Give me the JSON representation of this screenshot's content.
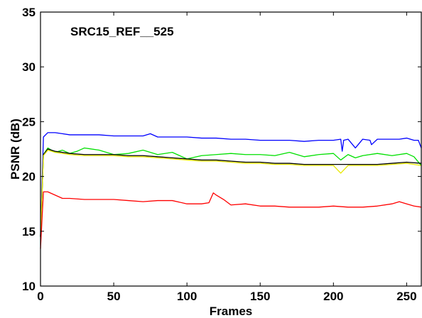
{
  "chart_data": {
    "type": "line",
    "title": "SRC15_REF__525",
    "xlabel": "Frames",
    "ylabel": "PSNR (dB)",
    "xlim": [
      0,
      260
    ],
    "ylim": [
      10,
      35
    ],
    "xticks": [
      0,
      50,
      100,
      150,
      200,
      250
    ],
    "yticks": [
      10,
      15,
      20,
      25,
      30,
      35
    ],
    "grid": false,
    "legend": "none",
    "series": [
      {
        "color": "#0000ff",
        "x": [
          0,
          2,
          5,
          10,
          15,
          20,
          30,
          40,
          50,
          60,
          70,
          75,
          80,
          90,
          100,
          110,
          120,
          130,
          140,
          150,
          160,
          170,
          180,
          190,
          200,
          205,
          206,
          207,
          210,
          215,
          220,
          225,
          226,
          230,
          240,
          245,
          250,
          255,
          258,
          260
        ],
        "y": [
          14.5,
          23.6,
          24.0,
          24.0,
          23.9,
          23.8,
          23.8,
          23.8,
          23.7,
          23.7,
          23.7,
          23.9,
          23.6,
          23.6,
          23.6,
          23.5,
          23.5,
          23.4,
          23.4,
          23.3,
          23.3,
          23.3,
          23.2,
          23.3,
          23.3,
          23.4,
          22.3,
          23.3,
          23.4,
          22.6,
          23.4,
          23.3,
          22.9,
          23.4,
          23.4,
          23.4,
          23.5,
          23.3,
          23.3,
          22.6
        ]
      },
      {
        "color": "#00e000",
        "x": [
          0,
          2,
          5,
          10,
          15,
          20,
          25,
          30,
          40,
          50,
          60,
          70,
          80,
          90,
          100,
          110,
          120,
          130,
          140,
          150,
          160,
          170,
          180,
          190,
          200,
          205,
          210,
          215,
          220,
          230,
          240,
          250,
          255,
          260
        ],
        "y": [
          14.5,
          22.0,
          22.6,
          22.2,
          22.4,
          22.1,
          22.3,
          22.6,
          22.4,
          22.0,
          22.1,
          22.4,
          22.0,
          22.2,
          21.6,
          21.9,
          22.0,
          22.1,
          22.0,
          22.0,
          21.9,
          22.2,
          21.8,
          22.0,
          22.1,
          21.5,
          22.0,
          21.7,
          21.9,
          22.1,
          21.9,
          22.1,
          21.8,
          21.0
        ]
      },
      {
        "color": "#000000",
        "x": [
          0,
          2,
          5,
          10,
          20,
          30,
          40,
          50,
          60,
          70,
          80,
          90,
          100,
          110,
          120,
          130,
          140,
          150,
          160,
          170,
          180,
          190,
          200,
          210,
          220,
          230,
          240,
          250,
          260
        ],
        "y": [
          14.5,
          22.0,
          22.5,
          22.3,
          22.1,
          22.0,
          22.0,
          22.0,
          21.9,
          21.9,
          21.8,
          21.7,
          21.6,
          21.5,
          21.5,
          21.4,
          21.3,
          21.3,
          21.2,
          21.2,
          21.1,
          21.1,
          21.1,
          21.1,
          21.1,
          21.1,
          21.2,
          21.3,
          21.2
        ]
      },
      {
        "color": "#e8e800",
        "x": [
          0,
          2,
          5,
          10,
          20,
          30,
          40,
          50,
          60,
          70,
          80,
          90,
          100,
          110,
          120,
          130,
          140,
          150,
          160,
          170,
          180,
          190,
          200,
          205,
          210,
          220,
          230,
          240,
          250,
          260
        ],
        "y": [
          14.5,
          21.9,
          22.4,
          22.2,
          22.0,
          21.9,
          21.9,
          21.9,
          21.8,
          21.8,
          21.7,
          21.6,
          21.5,
          21.4,
          21.4,
          21.3,
          21.2,
          21.2,
          21.1,
          21.1,
          21.0,
          21.0,
          21.0,
          20.3,
          21.0,
          21.0,
          21.0,
          21.1,
          21.2,
          21.0
        ]
      },
      {
        "color": "#ff0000",
        "x": [
          0,
          2,
          5,
          10,
          15,
          20,
          30,
          40,
          50,
          60,
          70,
          80,
          90,
          100,
          110,
          115,
          118,
          120,
          125,
          130,
          140,
          150,
          160,
          170,
          180,
          190,
          200,
          210,
          220,
          230,
          240,
          245,
          250,
          255,
          260
        ],
        "y": [
          13.4,
          18.6,
          18.6,
          18.3,
          18.0,
          18.0,
          17.9,
          17.9,
          17.9,
          17.8,
          17.7,
          17.8,
          17.8,
          17.5,
          17.5,
          17.6,
          18.5,
          18.3,
          17.9,
          17.4,
          17.5,
          17.3,
          17.3,
          17.2,
          17.2,
          17.2,
          17.3,
          17.2,
          17.2,
          17.3,
          17.5,
          17.7,
          17.5,
          17.3,
          17.2
        ]
      }
    ]
  }
}
